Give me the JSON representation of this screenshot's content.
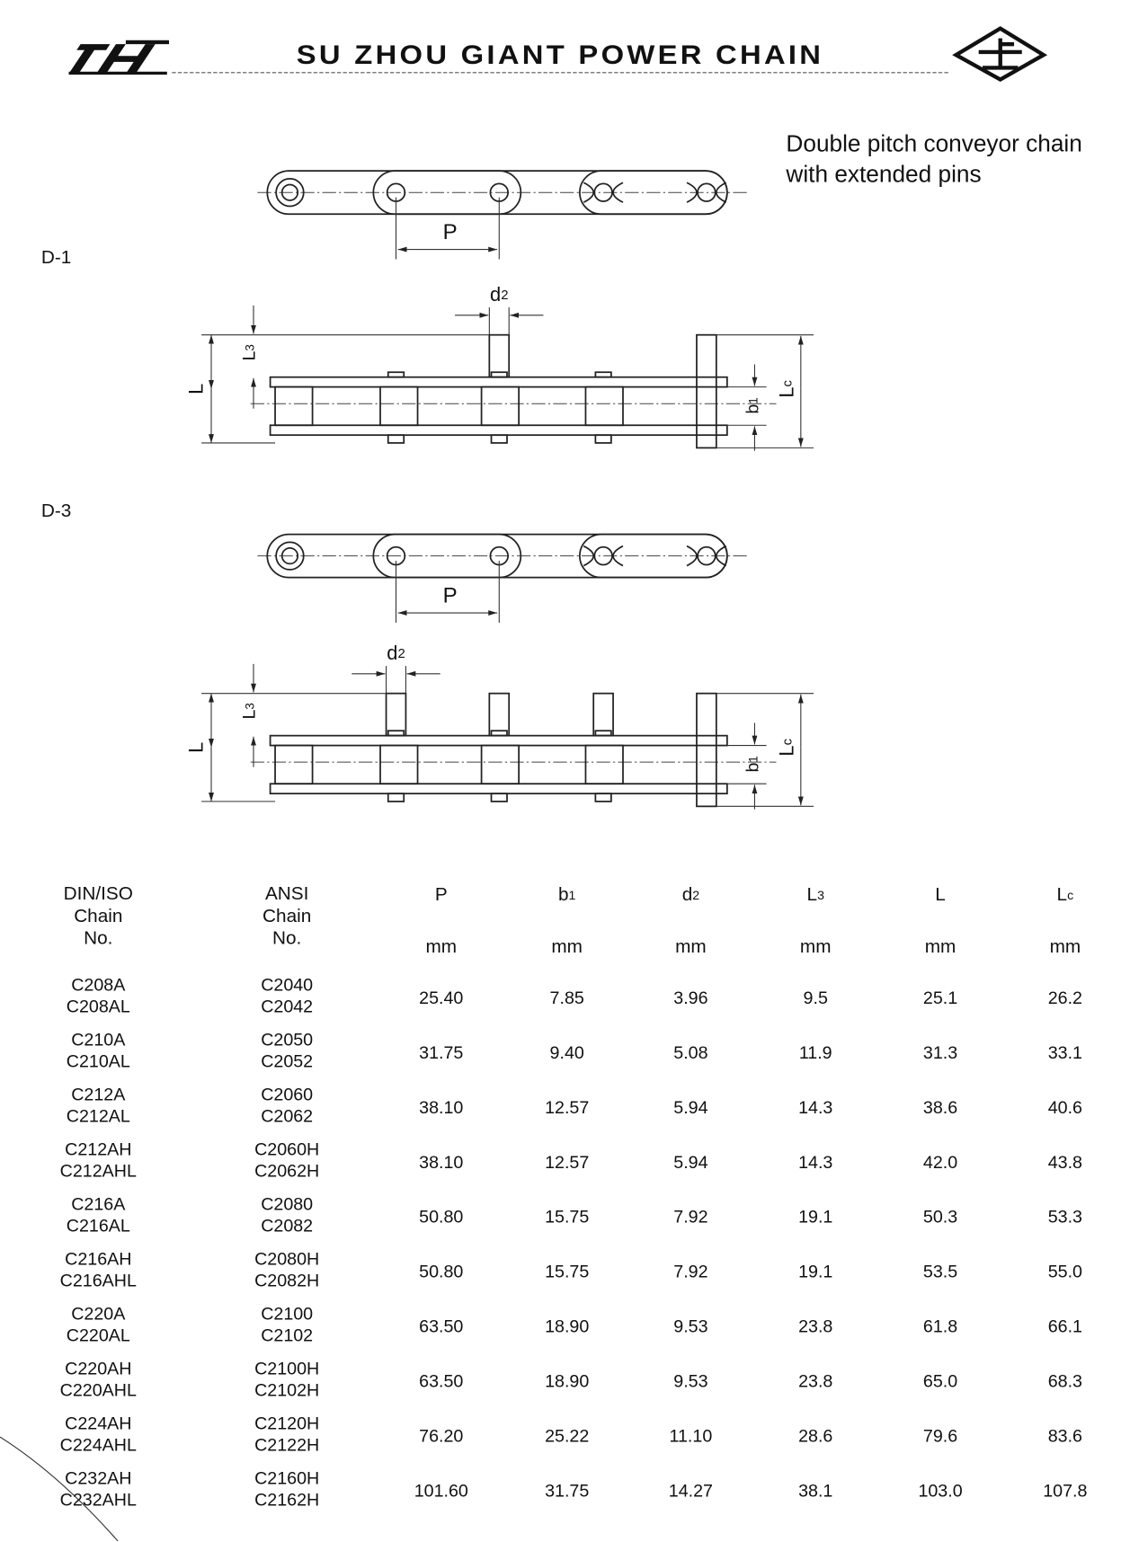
{
  "header": {
    "title": "SU ZHOU GIANT POWER CHAIN"
  },
  "description": [
    "Double pitch conveyor chain",
    "with extended pins"
  ],
  "diagrams": [
    {
      "label": "D-1",
      "labels": {
        "pitch": [
          "P"
        ],
        "pin_diameter": [
          "d",
          "2"
        ],
        "pin_extension": [
          "L",
          "3"
        ],
        "length": [
          "L"
        ],
        "inner_width": [
          "b",
          "1"
        ],
        "pin_length": [
          "L",
          "c"
        ]
      }
    },
    {
      "label": "D-3",
      "labels": {
        "pitch": [
          "P"
        ],
        "pin_diameter": [
          "d",
          "2"
        ],
        "pin_extension": [
          "L",
          "3"
        ],
        "length": [
          "L"
        ],
        "inner_width": [
          "b",
          "1"
        ],
        "pin_length": [
          "L",
          "c"
        ]
      }
    }
  ],
  "table": {
    "name_columns": [
      [
        "DIN/ISO",
        "Chain",
        "No."
      ],
      [
        "ANSI",
        "Chain",
        "No."
      ]
    ],
    "value_columns": [
      {
        "symbol": [
          "P"
        ],
        "unit": "mm"
      },
      {
        "symbol": [
          "b",
          "1"
        ],
        "unit": "mm"
      },
      {
        "symbol": [
          "d",
          "2"
        ],
        "unit": "mm"
      },
      {
        "symbol": [
          "L",
          "3"
        ],
        "unit": "mm"
      },
      {
        "symbol": [
          "L"
        ],
        "unit": "mm"
      },
      {
        "symbol": [
          "L",
          "c"
        ],
        "unit": "mm"
      }
    ],
    "rows": [
      {
        "iso": [
          "C208A",
          "C208AL"
        ],
        "ansi": [
          "C2040",
          "C2042"
        ],
        "values": [
          "25.40",
          "7.85",
          "3.96",
          "9.5",
          "25.1",
          "26.2"
        ]
      },
      {
        "iso": [
          "C210A",
          "C210AL"
        ],
        "ansi": [
          "C2050",
          "C2052"
        ],
        "values": [
          "31.75",
          "9.40",
          "5.08",
          "11.9",
          "31.3",
          "33.1"
        ]
      },
      {
        "iso": [
          "C212A",
          "C212AL"
        ],
        "ansi": [
          "C2060",
          "C2062"
        ],
        "values": [
          "38.10",
          "12.57",
          "5.94",
          "14.3",
          "38.6",
          "40.6"
        ]
      },
      {
        "iso": [
          "C212AH",
          "C212AHL"
        ],
        "ansi": [
          "C2060H",
          "C2062H"
        ],
        "values": [
          "38.10",
          "12.57",
          "5.94",
          "14.3",
          "42.0",
          "43.8"
        ]
      },
      {
        "iso": [
          "C216A",
          "C216AL"
        ],
        "ansi": [
          "C2080",
          "C2082"
        ],
        "values": [
          "50.80",
          "15.75",
          "7.92",
          "19.1",
          "50.3",
          "53.3"
        ]
      },
      {
        "iso": [
          "C216AH",
          "C216AHL"
        ],
        "ansi": [
          "C2080H",
          "C2082H"
        ],
        "values": [
          "50.80",
          "15.75",
          "7.92",
          "19.1",
          "53.5",
          "55.0"
        ]
      },
      {
        "iso": [
          "C220A",
          "C220AL"
        ],
        "ansi": [
          "C2100",
          "C2102"
        ],
        "values": [
          "63.50",
          "18.90",
          "9.53",
          "23.8",
          "61.8",
          "66.1"
        ]
      },
      {
        "iso": [
          "C220AH",
          "C220AHL"
        ],
        "ansi": [
          "C2100H",
          "C2102H"
        ],
        "values": [
          "63.50",
          "18.90",
          "9.53",
          "23.8",
          "65.0",
          "68.3"
        ]
      },
      {
        "iso": [
          "C224AH",
          "C224AHL"
        ],
        "ansi": [
          "C2120H",
          "C2122H"
        ],
        "values": [
          "76.20",
          "25.22",
          "11.10",
          "28.6",
          "79.6",
          "83.6"
        ]
      },
      {
        "iso": [
          "C232AH",
          "C232AHL"
        ],
        "ansi": [
          "C2160H",
          "C2162H"
        ],
        "values": [
          "101.60",
          "31.75",
          "14.27",
          "38.1",
          "103.0",
          "107.8"
        ]
      }
    ]
  }
}
